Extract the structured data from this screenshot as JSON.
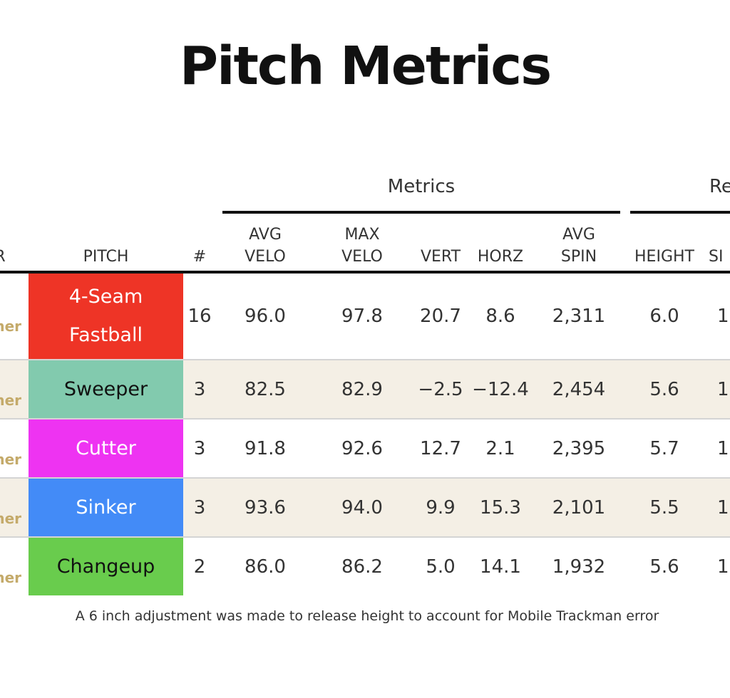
{
  "title": "Pitch Metrics",
  "groups": {
    "metrics": "Metrics",
    "release": "Re"
  },
  "columns": {
    "pitcher": "R",
    "pitch": "PITCH",
    "count": "#",
    "avg_velo": [
      "AVG",
      "VELO"
    ],
    "max_velo": [
      "MAX",
      "VELO"
    ],
    "vert": "VERT",
    "horz": "HORZ",
    "avg_spin": [
      "AVG",
      "SPIN"
    ],
    "height": "HEIGHT",
    "side": "SI"
  },
  "rows": [
    {
      "pitcher": "ner",
      "pitch": "4-Seam Fastball",
      "color": "#ee3426",
      "text_color": "#ffffff",
      "count": "16",
      "avg_velo": "96.0",
      "max_velo": "97.8",
      "vert": "20.7",
      "horz": "8.6",
      "avg_spin": "2,311",
      "height": "6.0",
      "side": "1."
    },
    {
      "pitcher": "ner",
      "pitch": "Sweeper",
      "color": "#82caae",
      "text_color": "#111111",
      "count": "3",
      "avg_velo": "82.5",
      "max_velo": "82.9",
      "vert": "−2.5",
      "horz": "−12.4",
      "avg_spin": "2,454",
      "height": "5.6",
      "side": "1."
    },
    {
      "pitcher": "ner",
      "pitch": "Cutter",
      "color": "#ee33f2",
      "text_color": "#ffffff",
      "count": "3",
      "avg_velo": "91.8",
      "max_velo": "92.6",
      "vert": "12.7",
      "horz": "2.1",
      "avg_spin": "2,395",
      "height": "5.7",
      "side": "1."
    },
    {
      "pitcher": "ner",
      "pitch": "Sinker",
      "color": "#438bf7",
      "text_color": "#ffffff",
      "count": "3",
      "avg_velo": "93.6",
      "max_velo": "94.0",
      "vert": "9.9",
      "horz": "15.3",
      "avg_spin": "2,101",
      "height": "5.5",
      "side": "1."
    },
    {
      "pitcher": "ner",
      "pitch": "Changeup",
      "color": "#69cc4d",
      "text_color": "#111111",
      "count": "2",
      "avg_velo": "86.0",
      "max_velo": "86.2",
      "vert": "5.0",
      "horz": "14.1",
      "avg_spin": "1,932",
      "height": "5.6",
      "side": "1."
    }
  ],
  "footnote": "A 6 inch adjustment was made to release height to account for Mobile Trackman error"
}
